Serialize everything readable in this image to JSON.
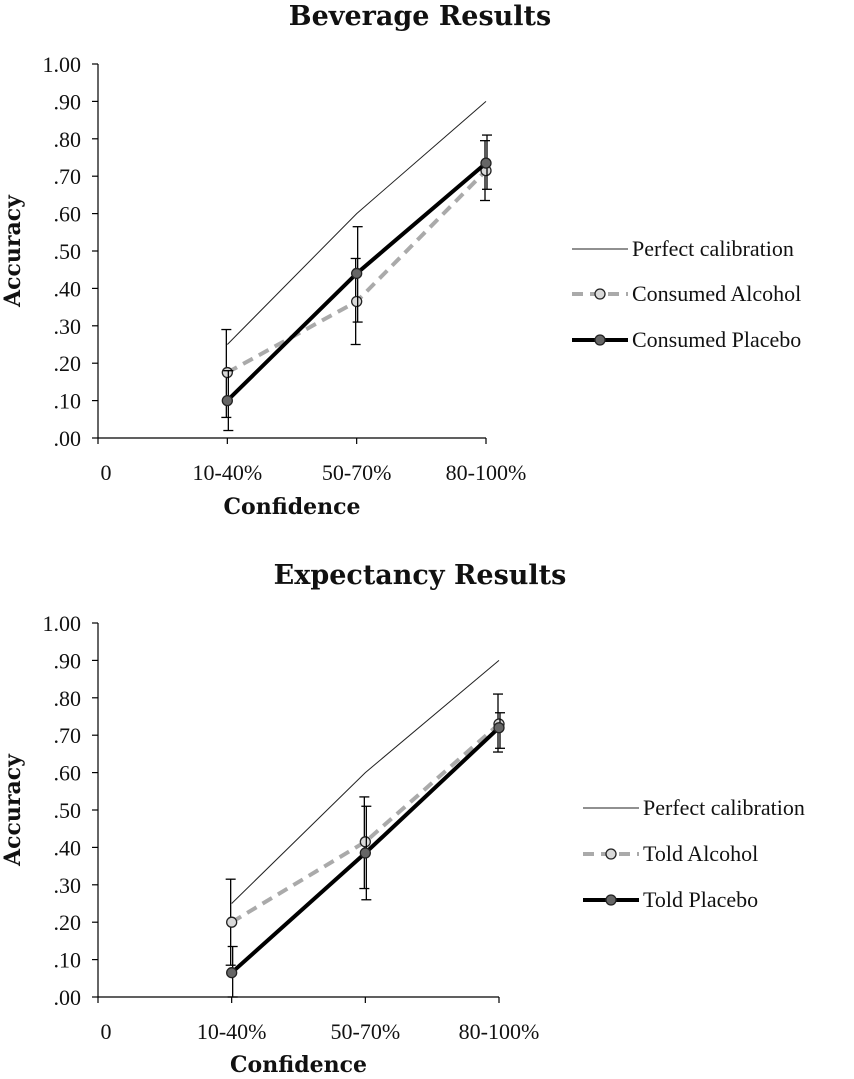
{
  "chart_data": [
    {
      "type": "line",
      "title": "Beverage Results",
      "xlabel": "Confidence",
      "ylabel": "Accuracy",
      "ylim": [
        0,
        1
      ],
      "yticks": [
        ".00",
        ".10",
        ".20",
        ".30",
        ".40",
        ".50",
        ".60",
        ".70",
        ".80",
        ".90",
        "1.00"
      ],
      "xticks": [
        "0",
        "10-40%",
        "50-70%",
        "80-100%"
      ],
      "categories": [
        "10-40%",
        "50-70%",
        "80-100%"
      ],
      "legend_position": "right",
      "series": [
        {
          "name": "Perfect calibration",
          "style": "thin",
          "color": "#222222",
          "values": [
            0.25,
            0.6,
            0.9
          ]
        },
        {
          "name": "Consumed Alcohol",
          "style": "dashed",
          "color": "#aaaaaa",
          "marker_fill": "#d9d9d9",
          "values": [
            0.175,
            0.365,
            0.715
          ],
          "err_low": [
            0.055,
            0.25,
            0.635
          ],
          "err_high": [
            0.29,
            0.48,
            0.795
          ]
        },
        {
          "name": "Consumed Placebo",
          "style": "thick",
          "color": "#000000",
          "marker_fill": "#666666",
          "values": [
            0.1,
            0.44,
            0.735
          ],
          "err_low": [
            0.02,
            0.31,
            0.665
          ],
          "err_high": [
            0.18,
            0.565,
            0.81
          ]
        }
      ]
    },
    {
      "type": "line",
      "title": "Expectancy Results",
      "xlabel": "Confidence",
      "ylabel": "Accuracy",
      "ylim": [
        0,
        1
      ],
      "yticks": [
        ".00",
        ".10",
        ".20",
        ".30",
        ".40",
        ".50",
        ".60",
        ".70",
        ".80",
        ".90",
        "1.00"
      ],
      "xticks": [
        "0",
        "10-40%",
        "50-70%",
        "80-100%"
      ],
      "categories": [
        "10-40%",
        "50-70%",
        "80-100%"
      ],
      "legend_position": "right",
      "series": [
        {
          "name": "Perfect calibration",
          "style": "thin",
          "color": "#222222",
          "values": [
            0.25,
            0.6,
            0.9
          ]
        },
        {
          "name": "Told Alcohol",
          "style": "dashed",
          "color": "#aaaaaa",
          "marker_fill": "#d9d9d9",
          "values": [
            0.2,
            0.415,
            0.73
          ],
          "err_low": [
            0.085,
            0.29,
            0.655
          ],
          "err_high": [
            0.315,
            0.535,
            0.81
          ]
        },
        {
          "name": "Told Placebo",
          "style": "thick",
          "color": "#000000",
          "marker_fill": "#666666",
          "values": [
            0.065,
            0.385,
            0.72
          ],
          "err_low": [
            0.0,
            0.26,
            0.665
          ],
          "err_high": [
            0.135,
            0.51,
            0.76
          ]
        }
      ]
    }
  ]
}
